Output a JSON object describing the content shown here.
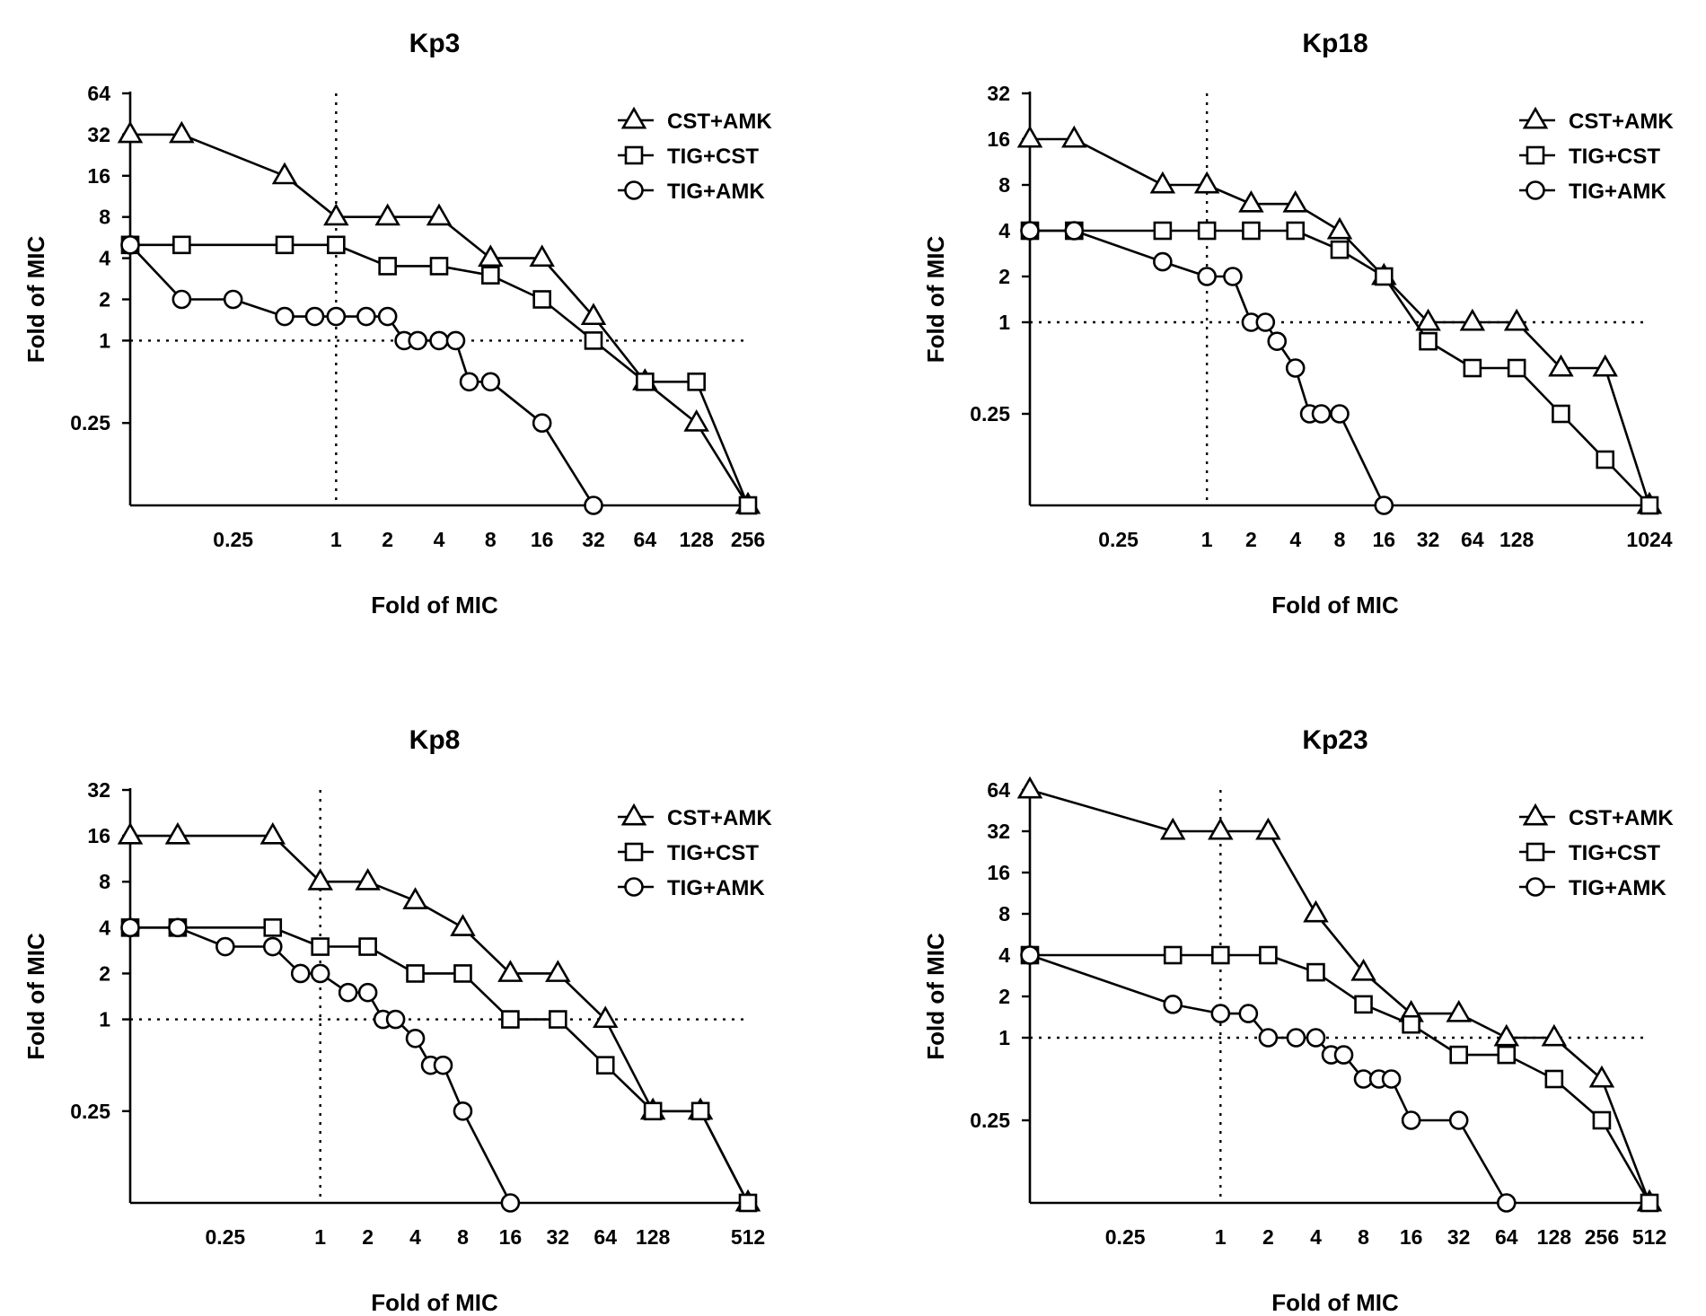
{
  "chart_data": [
    {
      "type": "line",
      "title": "Kp3",
      "xlabel": "Fold of MIC",
      "ylabel": "Fold of MIC",
      "x_scale": "log2",
      "y_scale": "log2",
      "xlim": [
        0.0625,
        256
      ],
      "ylim": [
        0.0625,
        64
      ],
      "x_ticks": [
        0.25,
        1,
        2,
        4,
        8,
        16,
        32,
        64,
        128,
        256
      ],
      "x_tick_labels": [
        "0.25",
        "1",
        "2",
        "4",
        "8",
        "16",
        "32",
        "64",
        "128",
        "256"
      ],
      "y_ticks": [
        0.25,
        1,
        2,
        4,
        8,
        16,
        32,
        64
      ],
      "y_tick_labels": [
        "0.25",
        "1",
        "2",
        "4",
        "8",
        "16",
        "32",
        "64"
      ],
      "ref_x": 1,
      "ref_y": 1,
      "legend": "top-right",
      "series": [
        {
          "name": "CST+AMK",
          "marker": "triangle",
          "x": [
            0.0625,
            0.125,
            0.5,
            1,
            2,
            4,
            8,
            16,
            32,
            64,
            128,
            256
          ],
          "y": [
            32,
            32,
            16,
            8,
            8,
            8,
            4,
            4,
            1.5,
            0.5,
            0.25,
            0.0625
          ]
        },
        {
          "name": "TIG+CST",
          "marker": "square",
          "x": [
            0.0625,
            0.125,
            0.5,
            1,
            2,
            4,
            8,
            16,
            32,
            64,
            128,
            256
          ],
          "y": [
            5,
            5,
            5,
            5,
            3.5,
            3.5,
            3,
            2,
            1,
            0.5,
            0.5,
            0.0625
          ]
        },
        {
          "name": "TIG+AMK",
          "marker": "circle",
          "x": [
            0.0625,
            0.125,
            0.25,
            0.5,
            0.75,
            1,
            1.5,
            2,
            2.5,
            3,
            4,
            5,
            6,
            8,
            16,
            32
          ],
          "y": [
            5,
            2,
            2,
            1.5,
            1.5,
            1.5,
            1.5,
            1.5,
            1,
            1,
            1,
            1,
            0.5,
            0.5,
            0.25,
            0.0625
          ]
        }
      ]
    },
    {
      "type": "line",
      "title": "Kp18",
      "xlabel": "Fold of MIC",
      "ylabel": "Fold of MIC",
      "x_scale": "log2",
      "y_scale": "log2",
      "xlim": [
        0.0625,
        1024
      ],
      "ylim": [
        0.0625,
        32
      ],
      "x_ticks": [
        0.25,
        1,
        2,
        4,
        8,
        16,
        32,
        64,
        128,
        1024
      ],
      "x_tick_labels": [
        "0.25",
        "1",
        "2",
        "4",
        "8",
        "16",
        "32",
        "64",
        "128",
        "1024"
      ],
      "y_ticks": [
        0.25,
        1,
        2,
        4,
        8,
        16,
        32
      ],
      "y_tick_labels": [
        "0.25",
        "1",
        "2",
        "4",
        "8",
        "16",
        "32"
      ],
      "ref_x": 1,
      "ref_y": 1,
      "legend": "top-right",
      "series": [
        {
          "name": "CST+AMK",
          "marker": "triangle",
          "x": [
            0.0625,
            0.125,
            0.5,
            1,
            2,
            4,
            8,
            16,
            32,
            64,
            128,
            256,
            512,
            1024
          ],
          "y": [
            16,
            16,
            8,
            8,
            6,
            6,
            4,
            2,
            1,
            1,
            1,
            0.5,
            0.5,
            0.0625
          ]
        },
        {
          "name": "TIG+CST",
          "marker": "square",
          "x": [
            0.0625,
            0.125,
            0.5,
            1,
            2,
            4,
            8,
            16,
            32,
            64,
            128,
            256,
            512,
            1024
          ],
          "y": [
            4,
            4,
            4,
            4,
            4,
            4,
            3,
            2,
            0.75,
            0.5,
            0.5,
            0.25,
            0.125,
            0.0625
          ]
        },
        {
          "name": "TIG+AMK",
          "marker": "circle",
          "x": [
            0.0625,
            0.125,
            0.5,
            1,
            1.5,
            2,
            2.5,
            3,
            4,
            5,
            6,
            8,
            16
          ],
          "y": [
            4,
            4,
            2.5,
            2,
            2,
            1,
            1,
            0.75,
            0.5,
            0.25,
            0.25,
            0.25,
            0.0625
          ]
        }
      ]
    },
    {
      "type": "line",
      "title": "Kp8",
      "xlabel": "Fold of MIC",
      "ylabel": "Fold of MIC",
      "x_scale": "log2",
      "y_scale": "log2",
      "xlim": [
        0.0625,
        512
      ],
      "ylim": [
        0.0625,
        32
      ],
      "x_ticks": [
        0.25,
        1,
        2,
        4,
        8,
        16,
        32,
        64,
        128,
        512
      ],
      "x_tick_labels": [
        "0.25",
        "1",
        "2",
        "4",
        "8",
        "16",
        "32",
        "64",
        "128",
        "512"
      ],
      "y_ticks": [
        0.25,
        1,
        2,
        4,
        8,
        16,
        32
      ],
      "y_tick_labels": [
        "0.25",
        "1",
        "2",
        "4",
        "8",
        "16",
        "32"
      ],
      "ref_x": 1,
      "ref_y": 1,
      "legend": "top-right",
      "series": [
        {
          "name": "CST+AMK",
          "marker": "triangle",
          "x": [
            0.0625,
            0.125,
            0.5,
            1,
            2,
            4,
            8,
            16,
            32,
            64,
            128,
            256,
            512
          ],
          "y": [
            16,
            16,
            16,
            8,
            8,
            6,
            4,
            2,
            2,
            1,
            0.25,
            0.25,
            0.0625
          ]
        },
        {
          "name": "TIG+CST",
          "marker": "square",
          "x": [
            0.0625,
            0.125,
            0.5,
            1,
            2,
            4,
            8,
            16,
            32,
            64,
            128,
            256,
            512
          ],
          "y": [
            4,
            4,
            4,
            3,
            3,
            2,
            2,
            1,
            1,
            0.5,
            0.25,
            0.25,
            0.0625
          ]
        },
        {
          "name": "TIG+AMK",
          "marker": "circle",
          "x": [
            0.0625,
            0.125,
            0.25,
            0.5,
            0.75,
            1,
            1.5,
            2,
            2.5,
            3,
            4,
            5,
            6,
            8,
            16
          ],
          "y": [
            4,
            4,
            3,
            3,
            2,
            2,
            1.5,
            1.5,
            1,
            1,
            0.75,
            0.5,
            0.5,
            0.25,
            0.0625
          ]
        }
      ]
    },
    {
      "type": "line",
      "title": "Kp23",
      "xlabel": "Fold of MIC",
      "ylabel": "Fold of MIC",
      "x_scale": "log2",
      "y_scale": "log2",
      "xlim": [
        0.0625,
        512
      ],
      "ylim": [
        0.0625,
        64
      ],
      "x_ticks": [
        0.25,
        1,
        2,
        4,
        8,
        16,
        32,
        64,
        128,
        256,
        512
      ],
      "x_tick_labels": [
        "0.25",
        "1",
        "2",
        "4",
        "8",
        "16",
        "32",
        "64",
        "128",
        "256",
        "512"
      ],
      "y_ticks": [
        0.25,
        1,
        2,
        4,
        8,
        16,
        32,
        64
      ],
      "y_tick_labels": [
        "0.25",
        "1",
        "2",
        "4",
        "8",
        "16",
        "32",
        "64"
      ],
      "ref_x": 1,
      "ref_y": 1,
      "legend": "top-right",
      "series": [
        {
          "name": "CST+AMK",
          "marker": "triangle",
          "x": [
            0.0625,
            0.5,
            1,
            2,
            4,
            8,
            16,
            32,
            64,
            128,
            256,
            512
          ],
          "y": [
            64,
            32,
            32,
            32,
            8,
            3,
            1.5,
            1.5,
            1,
            1,
            0.5,
            0.0625
          ]
        },
        {
          "name": "TIG+CST",
          "marker": "square",
          "x": [
            0.0625,
            0.5,
            1,
            2,
            4,
            8,
            16,
            32,
            64,
            128,
            256,
            512
          ],
          "y": [
            4,
            4,
            4,
            4,
            3,
            1.75,
            1.25,
            0.75,
            0.75,
            0.5,
            0.25,
            0.0625
          ]
        },
        {
          "name": "TIG+AMK",
          "marker": "circle",
          "x": [
            0.0625,
            0.5,
            1,
            1.5,
            2,
            3,
            4,
            5,
            6,
            8,
            10,
            12,
            16,
            32,
            64
          ],
          "y": [
            4,
            1.75,
            1.5,
            1.5,
            1,
            1,
            1,
            0.75,
            0.75,
            0.5,
            0.5,
            0.5,
            0.25,
            0.25,
            0.0625
          ]
        }
      ]
    }
  ]
}
